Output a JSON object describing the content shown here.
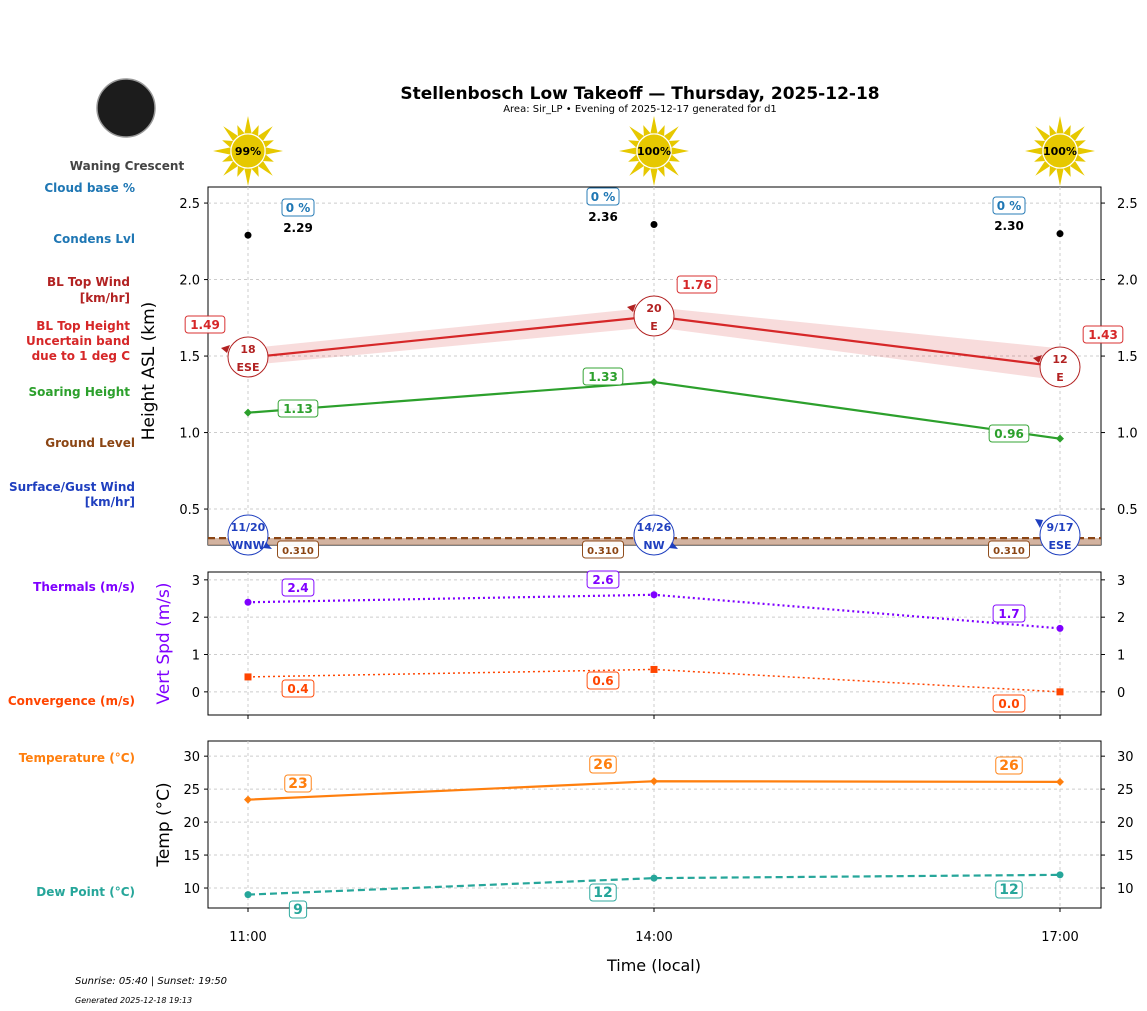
{
  "header": {
    "title": "Stellenbosch Low Takeoff — Thursday, 2025-12-18",
    "subtitle": "Area: Sir_LP • Evening of 2025-12-17 generated for d1",
    "moon_phase": "Waning Crescent",
    "sun_percent": [
      "99%",
      "100%",
      "100%"
    ]
  },
  "footer": {
    "sun_times": "Sunrise: 05:40 | Sunset: 19:50",
    "generated": "Generated 2025-12-18 19:13"
  },
  "colors": {
    "cloud": "#1f77b4",
    "bl_wind": "#b22222",
    "bl_top": "#d62728",
    "soaring": "#2ca02c",
    "ground": "#8b4513",
    "surface_wind": "#1f3fbf",
    "thermals": "#7f00ff",
    "convergence": "#ff4500",
    "temperature": "#ff7f0e",
    "dew": "#26a69a",
    "sun": "#e6c800"
  },
  "row_labels": {
    "cloud_base": "Cloud base %",
    "condens": "Condens Lvl",
    "bl_wind": [
      "BL Top Wind",
      "[km/hr]"
    ],
    "bl_top": [
      "BL Top Height",
      "Uncertain band",
      "due to 1 deg C"
    ],
    "soaring": "Soaring Height",
    "ground": "Ground Level",
    "surface_wind": [
      "Surface/Gust Wind",
      "[km/hr]"
    ],
    "thermals": "Thermals (m/s)",
    "convergence": "Convergence (m/s)",
    "temperature": "Temperature (°C)",
    "dew": "Dew Point (°C)"
  },
  "chart_data": [
    {
      "type": "line",
      "ylabel": "Height ASL (km)",
      "ylim": [
        0.265,
        2.605
      ],
      "yticks": [
        "0.5",
        "1.0",
        "1.5",
        "2.0",
        "2.5"
      ],
      "x": [
        "11:00",
        "14:00",
        "17:00"
      ],
      "grid": true,
      "cloud_base_percent": [
        "0 %",
        "0 %",
        "0 %"
      ],
      "series": [
        {
          "key": "condens",
          "values": [
            2.29,
            2.36,
            2.3
          ],
          "labels": [
            "2.29",
            "2.36",
            "2.30"
          ],
          "style": "solid",
          "marker": "circle"
        },
        {
          "key": "bl_top",
          "values": [
            1.49,
            1.76,
            1.43
          ],
          "labels": [
            "1.49",
            "1.76",
            "1.43"
          ],
          "style": "solid",
          "marker": "none",
          "band": [
            [
              1.44,
              1.55
            ],
            [
              1.69,
              1.82
            ],
            [
              1.34,
              1.55
            ]
          ]
        },
        {
          "key": "soaring",
          "values": [
            1.13,
            1.33,
            0.96
          ],
          "labels": [
            "1.13",
            "1.33",
            "0.96"
          ],
          "style": "solid",
          "marker": "diamond"
        },
        {
          "key": "ground",
          "values": [
            0.31,
            0.31,
            0.31
          ],
          "labels": [
            "0.310",
            "0.310",
            "0.310"
          ],
          "style": "dashed",
          "marker": "none"
        }
      ],
      "bl_wind": [
        {
          "speed": "18",
          "dir": "ESE"
        },
        {
          "speed": "20",
          "dir": "E"
        },
        {
          "speed": "12",
          "dir": "E"
        }
      ],
      "surface_wind": [
        {
          "speed": "11/20",
          "dir": "WNW"
        },
        {
          "speed": "14/26",
          "dir": "NW"
        },
        {
          "speed": "9/17",
          "dir": "ESE"
        }
      ]
    },
    {
      "type": "line",
      "ylabel": "Vert Spd (m/s)",
      "ylim": [
        -0.62,
        3.21
      ],
      "yticks": [
        "0",
        "1",
        "2",
        "3"
      ],
      "x": [
        "11:00",
        "14:00",
        "17:00"
      ],
      "grid": true,
      "series": [
        {
          "key": "thermals",
          "values": [
            2.4,
            2.6,
            1.7
          ],
          "labels": [
            "2.4",
            "2.6",
            "1.7"
          ],
          "style": "dotted",
          "marker": "circle"
        },
        {
          "key": "convergence",
          "values": [
            0.4,
            0.6,
            0.0
          ],
          "labels": [
            "0.4",
            "0.6",
            "0.0"
          ],
          "style": "dotted",
          "marker": "square"
        }
      ]
    },
    {
      "type": "line",
      "ylabel": "Temp (°C)",
      "xlabel": "Time (local)",
      "ylim": [
        6.97,
        32.3
      ],
      "yticks": [
        "10",
        "15",
        "20",
        "25",
        "30"
      ],
      "x": [
        "11:00",
        "14:00",
        "17:00"
      ],
      "grid": true,
      "series": [
        {
          "key": "temperature",
          "values": [
            23.4,
            26.2,
            26.1
          ],
          "labels": [
            "23",
            "26",
            "26"
          ],
          "style": "solid",
          "marker": "diamond"
        },
        {
          "key": "dew",
          "values": [
            9.0,
            11.5,
            12.0
          ],
          "labels": [
            "9",
            "12",
            "12"
          ],
          "style": "dashed",
          "marker": "circle"
        }
      ]
    }
  ]
}
